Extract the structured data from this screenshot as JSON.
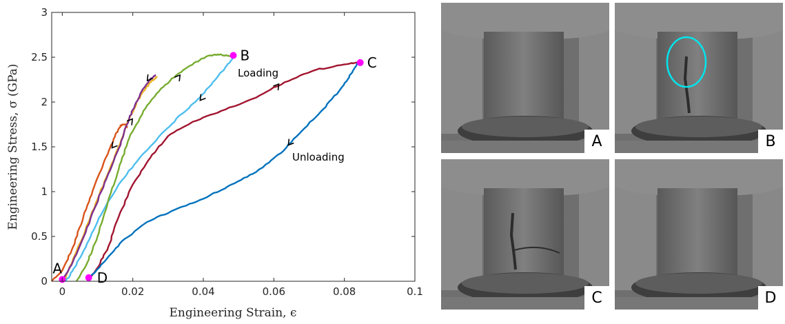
{
  "chart_data": {
    "type": "line",
    "xlabel": "Engineering Strain, ϵ",
    "ylabel": "Engineering Stress, σ (GPa)",
    "xlim": [
      -0.003,
      0.1
    ],
    "ylim": [
      0,
      3
    ],
    "xticks": [
      0,
      0.02,
      0.04,
      0.06,
      0.08,
      0.1
    ],
    "xtick_labels": [
      "0",
      "0.02",
      "0.04",
      "0.06",
      "0.08",
      "0.1"
    ],
    "yticks": [
      0,
      0.5,
      1,
      1.5,
      2,
      2.5,
      3
    ],
    "ytick_labels": [
      "0",
      "0.5",
      "1",
      "1.5",
      "2",
      "2.5",
      "3"
    ],
    "grid": false,
    "series": [
      {
        "color": "#D95319",
        "x": [
          -0.003,
          0.0,
          0.003,
          0.006,
          0.009,
          0.012,
          0.015,
          0.0165,
          0.018,
          0.0185
        ],
        "y": [
          0.0,
          0.12,
          0.38,
          0.72,
          1.05,
          1.35,
          1.62,
          1.74,
          1.75,
          1.72
        ]
      },
      {
        "color": "#EDB120",
        "x": [
          0.0005,
          0.004,
          0.008,
          0.012,
          0.016,
          0.019,
          0.021,
          0.023,
          0.025,
          0.027
        ],
        "y": [
          0.0,
          0.33,
          0.72,
          1.12,
          1.5,
          1.82,
          1.98,
          2.12,
          2.22,
          2.28
        ]
      },
      {
        "color": "#7E2F8E",
        "x": [
          0.0,
          0.004,
          0.008,
          0.012,
          0.016,
          0.019,
          0.021,
          0.023,
          0.025,
          0.0265
        ],
        "y": [
          0.0,
          0.3,
          0.7,
          1.1,
          1.48,
          1.82,
          2.0,
          2.15,
          2.26,
          2.3
        ]
      },
      {
        "color": "#4DBEEE",
        "x": [
          0.001,
          0.004,
          0.007,
          0.011,
          0.016,
          0.022,
          0.028,
          0.034,
          0.039,
          0.044,
          0.0475,
          0.049
        ],
        "y": [
          0.0,
          0.18,
          0.42,
          0.74,
          1.08,
          1.38,
          1.64,
          1.87,
          2.05,
          2.28,
          2.44,
          2.52
        ]
      },
      {
        "color": "#77AC30",
        "x": [
          0.004,
          0.007,
          0.01,
          0.013,
          0.016,
          0.019,
          0.023,
          0.028,
          0.033,
          0.038,
          0.041,
          0.044,
          0.046,
          0.048,
          0.0485
        ],
        "y": [
          0.0,
          0.2,
          0.5,
          0.9,
          1.25,
          1.6,
          1.9,
          2.15,
          2.32,
          2.45,
          2.51,
          2.53,
          2.52,
          2.51,
          2.52
        ]
      },
      {
        "color": "#A2142F",
        "x": [
          0.008,
          0.01,
          0.013,
          0.016,
          0.02,
          0.025,
          0.03,
          0.037,
          0.045,
          0.055,
          0.063,
          0.072,
          0.08,
          0.084
        ],
        "y": [
          0.05,
          0.15,
          0.38,
          0.72,
          1.08,
          1.38,
          1.62,
          1.78,
          1.9,
          2.05,
          2.22,
          2.36,
          2.42,
          2.44
        ]
      },
      {
        "color": "#0072BD",
        "x": [
          0.008,
          0.012,
          0.017,
          0.024,
          0.032,
          0.04,
          0.048,
          0.055,
          0.062,
          0.068,
          0.074,
          0.079,
          0.082,
          0.084
        ],
        "y": [
          0.05,
          0.22,
          0.45,
          0.66,
          0.8,
          0.92,
          1.08,
          1.22,
          1.43,
          1.68,
          1.92,
          2.15,
          2.32,
          2.44
        ]
      }
    ],
    "marked_points": [
      {
        "label": "A",
        "x": 0.0,
        "y": 0.02
      },
      {
        "label": "B",
        "x": 0.0485,
        "y": 2.52
      },
      {
        "label": "C",
        "x": 0.0845,
        "y": 2.44
      },
      {
        "label": "D",
        "x": 0.0075,
        "y": 0.04
      }
    ],
    "marker_color": "#FF00FF",
    "arrows": [
      {
        "x": 0.0245,
        "y": 2.27,
        "dir": "down"
      },
      {
        "x": 0.0195,
        "y": 1.78,
        "dir": "up"
      },
      {
        "x": 0.0145,
        "y": 1.52,
        "dir": "down"
      },
      {
        "x": 0.033,
        "y": 2.27,
        "dir": "up"
      },
      {
        "x": 0.0395,
        "y": 2.05,
        "dir": "down"
      },
      {
        "x": 0.061,
        "y": 2.17,
        "dir": "up"
      },
      {
        "x": 0.0645,
        "y": 1.55,
        "dir": "down"
      }
    ],
    "annotations": {
      "loading": "Loading",
      "unloading": "Unloading"
    }
  },
  "panels": [
    {
      "label": "A",
      "crack": false,
      "circle": false
    },
    {
      "label": "B",
      "crack": true,
      "circle": true,
      "circle_color": "#00E5EE"
    },
    {
      "label": "C",
      "crack": true,
      "circle": false
    },
    {
      "label": "D",
      "crack": false,
      "circle": false
    }
  ]
}
